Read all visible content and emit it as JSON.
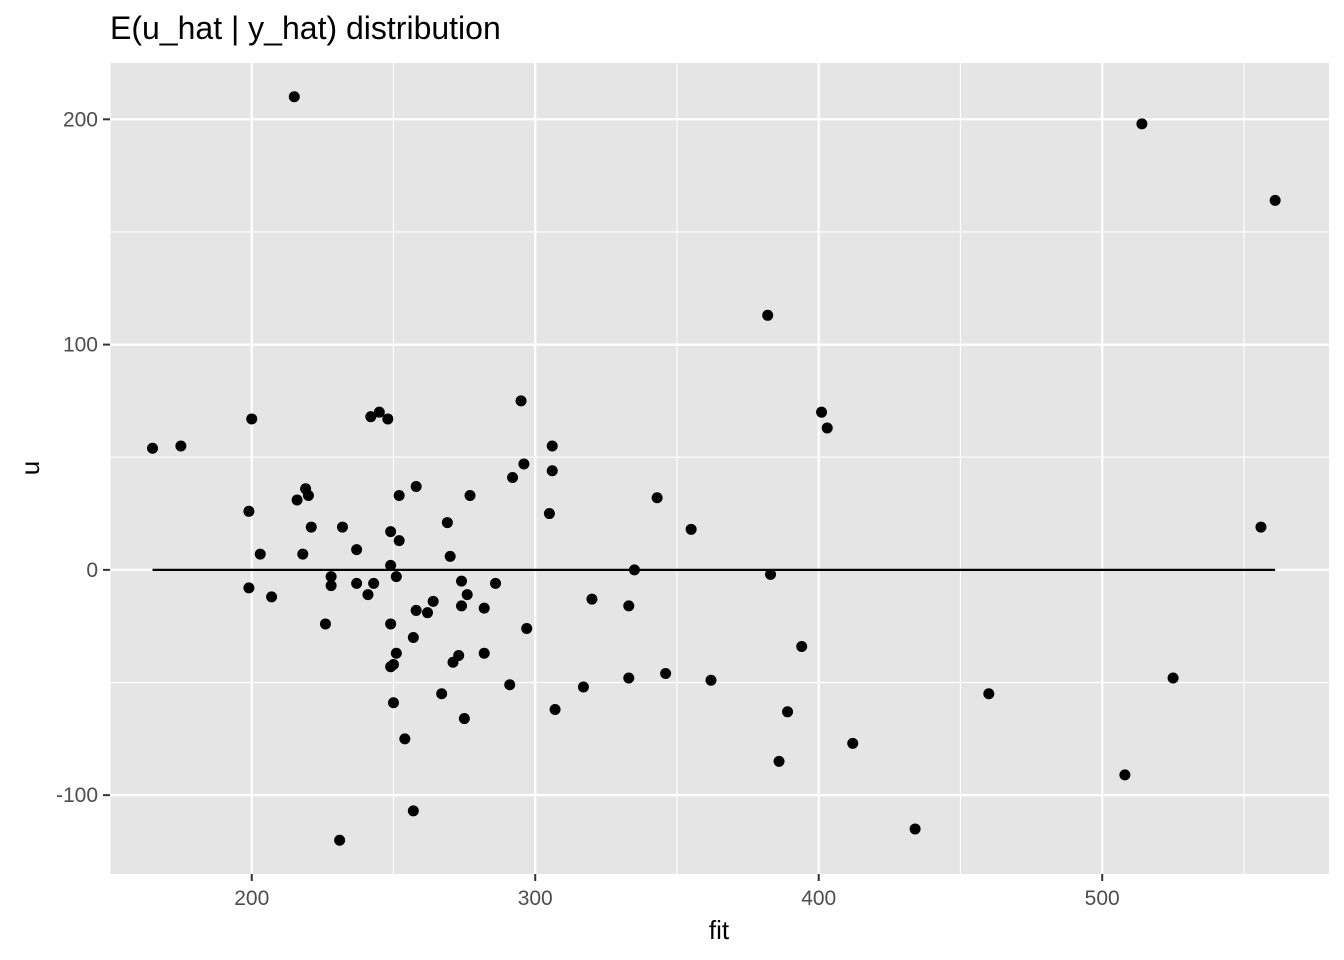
{
  "chart_data": {
    "type": "scatter",
    "title": "E(u_hat | y_hat) distribution",
    "xlabel": "fit",
    "ylabel": "u",
    "xlim": [
      150,
      580
    ],
    "ylim": [
      -135,
      225
    ],
    "x_ticks": [
      200,
      300,
      400,
      500
    ],
    "y_ticks": [
      -100,
      0,
      100,
      200
    ],
    "x_tick_labels": [
      "200",
      "300",
      "400",
      "500"
    ],
    "y_tick_labels": [
      "-100",
      "0",
      "100",
      "200"
    ],
    "grid": true,
    "background_color": "#e5e5e5",
    "grid_color": "#ffffff",
    "point_color": "#000000",
    "reference_line": {
      "y": 0,
      "x_from": 165,
      "x_to": 561
    },
    "points": [
      [
        165,
        54
      ],
      [
        175,
        55
      ],
      [
        199,
        26
      ],
      [
        199,
        -8
      ],
      [
        200,
        67
      ],
      [
        203,
        7
      ],
      [
        207,
        -12
      ],
      [
        215,
        210
      ],
      [
        216,
        31
      ],
      [
        218,
        7
      ],
      [
        219,
        36
      ],
      [
        220,
        33
      ],
      [
        221,
        19
      ],
      [
        226,
        -24
      ],
      [
        228,
        -3
      ],
      [
        228,
        -7
      ],
      [
        231,
        -120
      ],
      [
        232,
        19
      ],
      [
        237,
        9
      ],
      [
        237,
        -6
      ],
      [
        241,
        -11
      ],
      [
        242,
        68
      ],
      [
        243,
        -6
      ],
      [
        245,
        70
      ],
      [
        248,
        67
      ],
      [
        249,
        2
      ],
      [
        249,
        17
      ],
      [
        249,
        -24
      ],
      [
        249,
        -43
      ],
      [
        250,
        -59
      ],
      [
        250,
        -42
      ],
      [
        251,
        -3
      ],
      [
        251,
        -37
      ],
      [
        252,
        33
      ],
      [
        252,
        13
      ],
      [
        254,
        -75
      ],
      [
        257,
        -107
      ],
      [
        257,
        -30
      ],
      [
        258,
        37
      ],
      [
        258,
        -18
      ],
      [
        262,
        -19
      ],
      [
        264,
        -14
      ],
      [
        267,
        -55
      ],
      [
        269,
        21
      ],
      [
        270,
        6
      ],
      [
        271,
        -41
      ],
      [
        273,
        -38
      ],
      [
        274,
        -5
      ],
      [
        274,
        -16
      ],
      [
        275,
        -66
      ],
      [
        276,
        -11
      ],
      [
        277,
        33
      ],
      [
        282,
        -17
      ],
      [
        282,
        -37
      ],
      [
        286,
        -6
      ],
      [
        291,
        -51
      ],
      [
        292,
        41
      ],
      [
        295,
        75
      ],
      [
        296,
        47
      ],
      [
        297,
        -26
      ],
      [
        305,
        25
      ],
      [
        306,
        44
      ],
      [
        306,
        55
      ],
      [
        307,
        -62
      ],
      [
        317,
        -52
      ],
      [
        320,
        -13
      ],
      [
        333,
        -16
      ],
      [
        333,
        -48
      ],
      [
        335,
        0
      ],
      [
        343,
        32
      ],
      [
        346,
        -46
      ],
      [
        355,
        18
      ],
      [
        362,
        -49
      ],
      [
        382,
        113
      ],
      [
        383,
        -2
      ],
      [
        386,
        -85
      ],
      [
        389,
        -63
      ],
      [
        394,
        -34
      ],
      [
        401,
        70
      ],
      [
        403,
        63
      ],
      [
        412,
        -77
      ],
      [
        434,
        -115
      ],
      [
        460,
        -55
      ],
      [
        508,
        -91
      ],
      [
        514,
        198
      ],
      [
        525,
        -48
      ],
      [
        556,
        19
      ],
      [
        561,
        164
      ]
    ]
  }
}
